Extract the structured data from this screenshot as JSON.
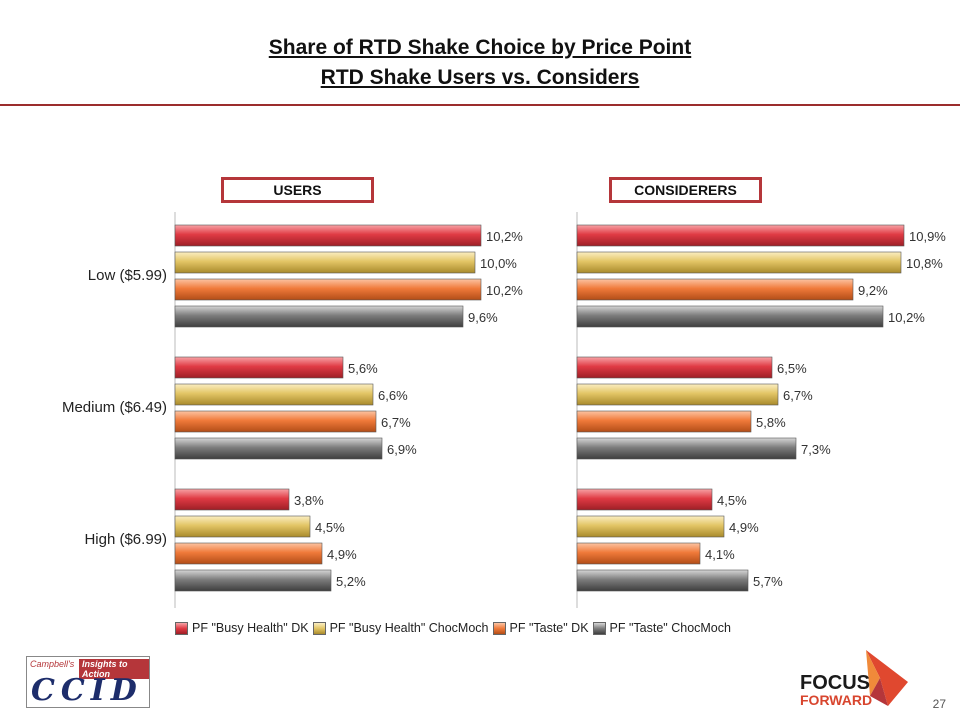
{
  "header": {
    "title_line1": "Share of RTD Shake Choice by Price Point",
    "title_line2": "RTD Shake Users vs. Considers"
  },
  "panels": {
    "left_label": "USERS",
    "right_label": "CONSIDERERS"
  },
  "colors": {
    "accent": "#b5363a",
    "series": [
      "#e03a44",
      "#e2c565",
      "#f07a3a",
      "#7d7d7d"
    ]
  },
  "chart_data": {
    "type": "bar",
    "orientation": "horizontal",
    "categories": [
      "Low ($5.99)",
      "Medium ($6.49)",
      "High ($6.99)"
    ],
    "series_names": [
      "PF \"Busy Health\" DK",
      "PF \"Busy Health\" ChocMoch",
      "PF \"Taste\" DK",
      "PF \"Taste\" ChocMoch"
    ],
    "xlim": [
      0,
      11
    ],
    "legend": "bottom",
    "grid": false,
    "panels": [
      {
        "name": "USERS",
        "values": [
          [
            10.2,
            10.0,
            10.2,
            9.6
          ],
          [
            5.6,
            6.6,
            6.7,
            6.9
          ],
          [
            3.8,
            4.5,
            4.9,
            5.2
          ]
        ],
        "labels": [
          [
            "10,2%",
            "10,0%",
            "10,2%",
            "9,6%"
          ],
          [
            "5,6%",
            "6,6%",
            "6,7%",
            "6,9%"
          ],
          [
            "3,8%",
            "4,5%",
            "4,9%",
            "5,2%"
          ]
        ]
      },
      {
        "name": "CONSIDERERS",
        "values": [
          [
            10.9,
            10.8,
            9.2,
            10.2
          ],
          [
            6.5,
            6.7,
            5.8,
            7.3
          ],
          [
            4.5,
            4.9,
            4.1,
            5.7
          ]
        ],
        "labels": [
          [
            "10,9%",
            "10,8%",
            "9,2%",
            "10,2%"
          ],
          [
            "6,5%",
            "6,7%",
            "5,8%",
            "7,3%"
          ],
          [
            "4,5%",
            "4,9%",
            "4,1%",
            "5,7%"
          ]
        ]
      }
    ]
  },
  "footer": {
    "page_number": "27",
    "left_logo_brand": "Campbell's",
    "left_logo_tagline": "Insights to Action",
    "left_logo_text": "CCID",
    "right_logo_line1": "FOCUS",
    "right_logo_line2": "FORWARD"
  }
}
